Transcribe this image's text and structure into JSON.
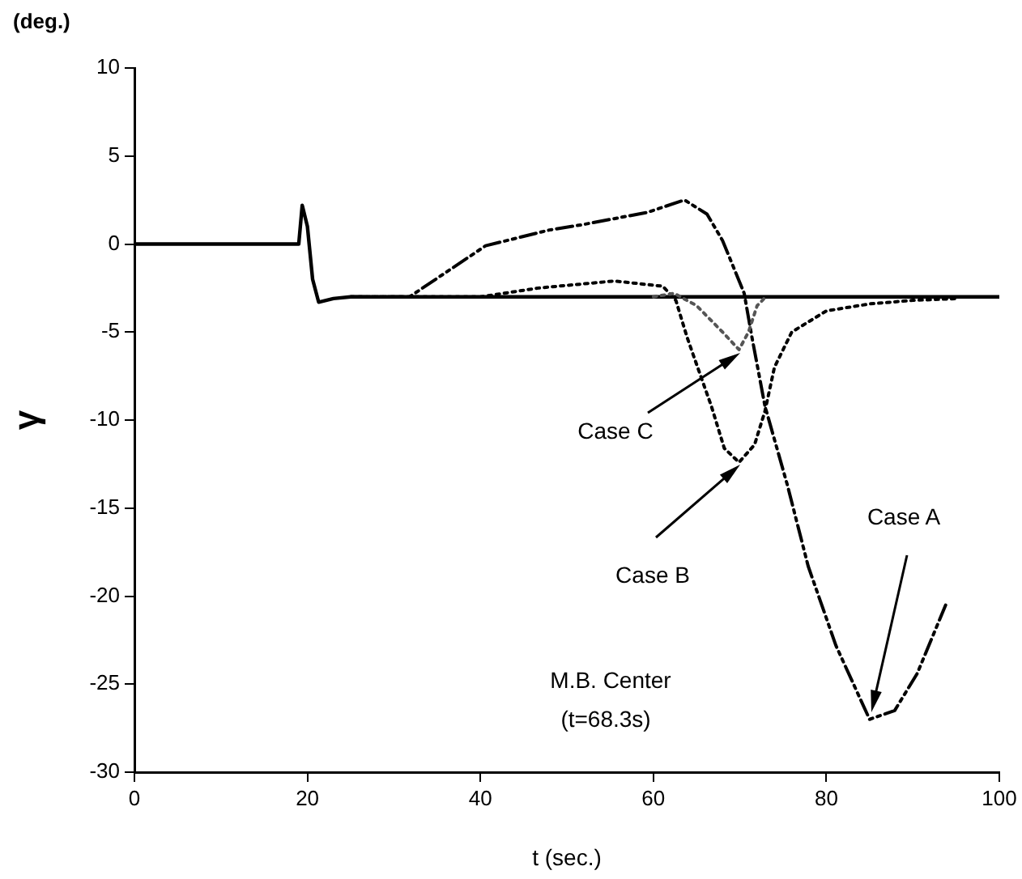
{
  "chart_data": {
    "type": "line",
    "xlabel": "t (sec.)",
    "ylabel": "γ",
    "xlim": [
      0,
      100
    ],
    "xticks": [
      0,
      20,
      40,
      60,
      80,
      100
    ],
    "ylim": [
      -30,
      10
    ],
    "yticks": [
      10,
      5,
      0,
      -5,
      -10,
      -15,
      -20,
      -25,
      -30
    ],
    "grid": false,
    "legend": false,
    "marker": "none",
    "series": [
      {
        "color": "#000000",
        "line_style": "solid",
        "x": [
          0,
          19,
          19.4,
          20,
          20.6,
          21.3,
          23,
          25,
          100
        ],
        "values": [
          0,
          0,
          2.2,
          1,
          -2,
          -3.3,
          -3.1,
          -3,
          -3
        ]
      },
      {
        "color": "#000000",
        "line_style": "dashed",
        "x": [
          25,
          31.8,
          40.6,
          48,
          51.8,
          59.3,
          63.6,
          66.2,
          68,
          70.5,
          71.4,
          72.9,
          75.5,
          77.9,
          81.1,
          85,
          87.9,
          90.5,
          93.8
        ],
        "values": [
          -3,
          -3,
          -0.1,
          0.8,
          1.1,
          1.8,
          2.5,
          1.7,
          0.2,
          -2.8,
          -5.3,
          -9.2,
          -13.7,
          -18.3,
          -22.8,
          -27,
          -26.5,
          -24.4,
          -20.5
        ]
      },
      {
        "color": "#000000",
        "line_style": "dotted",
        "x": [
          25,
          40,
          46.7,
          55.5,
          61.1,
          62.6,
          63.9,
          65.4,
          66.7,
          68.2,
          69.9,
          71.7,
          72.9,
          74,
          76,
          80,
          85,
          90,
          95
        ],
        "values": [
          -3,
          -3,
          -2.5,
          -2.1,
          -2.4,
          -3.2,
          -5.3,
          -7.4,
          -9.2,
          -11.6,
          -12.4,
          -11.4,
          -9.5,
          -7,
          -5,
          -3.8,
          -3.4,
          -3.2,
          -3.1
        ]
      },
      {
        "color": "#555555",
        "line_style": "dotted",
        "x": [
          60,
          62.4,
          65,
          68,
          69.9,
          71,
          72,
          73
        ],
        "values": [
          -3,
          -2.8,
          -3.5,
          -5,
          -6,
          -5,
          -3.5,
          -3
        ]
      }
    ],
    "annotations": [
      "(deg.)",
      "M.B. Center",
      "(t=68.3s)",
      "Case C",
      "Case B",
      "Case A"
    ]
  }
}
